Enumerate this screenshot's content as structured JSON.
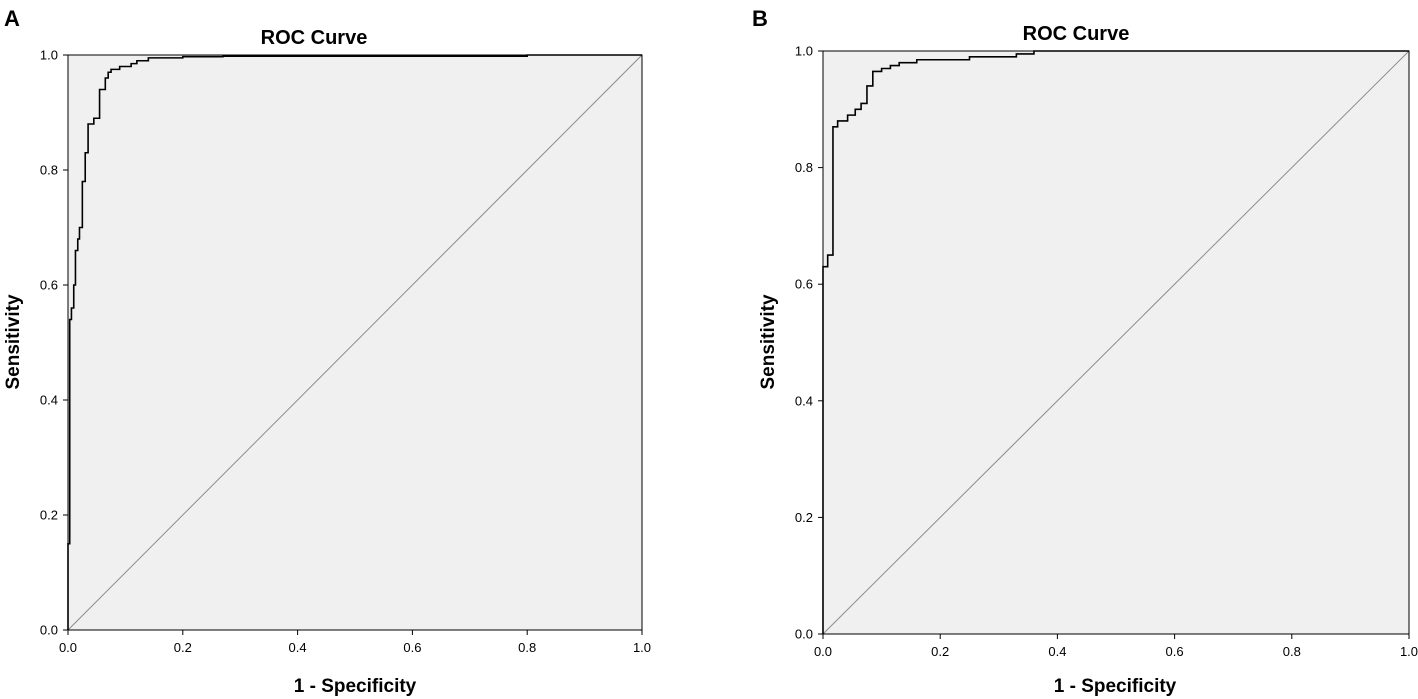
{
  "chart_data": [
    {
      "panel_label": "A",
      "type": "line",
      "title": "ROC Curve",
      "xlabel": "1 - Specificity",
      "ylabel": "Sensitivity",
      "xlim": [
        0,
        1
      ],
      "ylim": [
        0,
        1
      ],
      "xticks": [
        "0.0",
        "0.2",
        "0.4",
        "0.6",
        "0.8",
        "1.0"
      ],
      "yticks": [
        "0.0",
        "0.2",
        "0.4",
        "0.6",
        "0.8",
        "1.0"
      ],
      "grid": false,
      "colors": {
        "plot_background": "#f0f0f0",
        "curve": "#000000",
        "frame": "#000000",
        "reference_line": "#8c8c8c"
      },
      "series": [
        {
          "x": [
            0,
            0,
            0.003,
            0.003,
            0.006,
            0.006,
            0.01,
            0.01,
            0.013,
            0.013,
            0.017,
            0.017,
            0.02,
            0.02,
            0.025,
            0.025,
            0.03,
            0.03,
            0.035,
            0.035,
            0.045,
            0.045,
            0.055,
            0.055,
            0.065,
            0.065,
            0.07,
            0.07,
            0.075,
            0.075,
            0.09,
            0.09,
            0.11,
            0.11,
            0.12,
            0.12,
            0.14,
            0.14,
            0.2,
            0.2,
            0.27,
            0.27,
            0.8,
            0.8,
            1
          ],
          "y": [
            0,
            0.15,
            0.15,
            0.54,
            0.54,
            0.56,
            0.56,
            0.6,
            0.6,
            0.66,
            0.66,
            0.68,
            0.68,
            0.7,
            0.7,
            0.78,
            0.78,
            0.83,
            0.83,
            0.88,
            0.88,
            0.89,
            0.89,
            0.94,
            0.94,
            0.96,
            0.96,
            0.97,
            0.97,
            0.975,
            0.975,
            0.98,
            0.98,
            0.985,
            0.985,
            0.99,
            0.99,
            0.995,
            0.995,
            0.997,
            0.997,
            0.998,
            0.998,
            1,
            1
          ]
        }
      ]
    },
    {
      "panel_label": "B",
      "type": "line",
      "title": "ROC Curve",
      "xlabel": "1 - Specificity",
      "ylabel": "Sensitivity",
      "xlim": [
        0,
        1
      ],
      "ylim": [
        0,
        1
      ],
      "xticks": [
        "0.0",
        "0.2",
        "0.4",
        "0.6",
        "0.8",
        "1.0"
      ],
      "yticks": [
        "0.0",
        "0.2",
        "0.4",
        "0.6",
        "0.8",
        "1.0"
      ],
      "grid": false,
      "colors": {
        "plot_background": "#f0f0f0",
        "curve": "#000000",
        "frame": "#000000",
        "reference_line": "#8c8c8c"
      },
      "series": [
        {
          "x": [
            0,
            0,
            0.008,
            0.008,
            0.017,
            0.017,
            0.025,
            0.025,
            0.042,
            0.042,
            0.055,
            0.055,
            0.065,
            0.065,
            0.075,
            0.075,
            0.085,
            0.085,
            0.1,
            0.1,
            0.115,
            0.115,
            0.13,
            0.13,
            0.16,
            0.16,
            0.25,
            0.25,
            0.33,
            0.33,
            0.36,
            0.36,
            1
          ],
          "y": [
            0,
            0.63,
            0.63,
            0.65,
            0.65,
            0.87,
            0.87,
            0.88,
            0.88,
            0.89,
            0.89,
            0.9,
            0.9,
            0.91,
            0.91,
            0.94,
            0.94,
            0.965,
            0.965,
            0.97,
            0.97,
            0.975,
            0.975,
            0.98,
            0.98,
            0.985,
            0.985,
            0.99,
            0.99,
            0.995,
            0.995,
            1,
            1
          ]
        }
      ]
    }
  ]
}
